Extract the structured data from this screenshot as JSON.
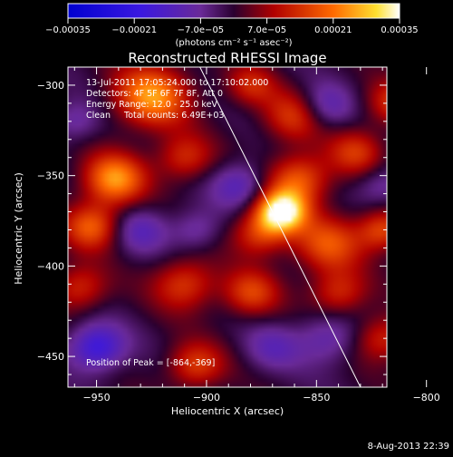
{
  "chart_data": {
    "type": "heatmap",
    "title": "Reconstructed RHESSI Image",
    "xlabel": "Heliocentric X (arcsec)",
    "ylabel": "Heliocentric Y (arcsec)",
    "xlim": [
      -963,
      -818
    ],
    "ylim": [
      -467,
      -290
    ],
    "x_ticks": [
      {
        "value": -950,
        "label": "−950"
      },
      {
        "value": -900,
        "label": "−900"
      },
      {
        "value": -850,
        "label": "−850"
      },
      {
        "value": -800,
        "label": "−800"
      }
    ],
    "y_ticks": [
      {
        "value": -300,
        "label": "−300"
      },
      {
        "value": -350,
        "label": "−350"
      },
      {
        "value": -400,
        "label": "−400"
      },
      {
        "value": -450,
        "label": "−450"
      }
    ],
    "colorbar": {
      "min": -0.00035,
      "max": 0.00035,
      "ticks": [
        {
          "value": -0.00035,
          "label": "−0.00035"
        },
        {
          "value": -0.00021,
          "label": "−0.00021"
        },
        {
          "value": -7e-05,
          "label": "−7.0e−05"
        },
        {
          "value": 7e-05,
          "label": "7.0e−05"
        },
        {
          "value": 0.00021,
          "label": "0.00021"
        },
        {
          "value": 0.00035,
          "label": "0.00035"
        }
      ],
      "units_label": "(photons cm⁻² s⁻¹ asec⁻²)"
    },
    "annotations": {
      "time_range": "13-Jul-2011 17:05:24.000 to 17:10:02.000",
      "detectors": "Detectors: 4F 5F 6F 7F 8F, Att 0",
      "energy_range": "Energy Range: 12.0 - 25.0 keV",
      "clean_counts": "Clean     Total counts: 6.49E+03",
      "peak_position": "Position of Peak = [-864,-369]"
    },
    "peak": {
      "x": -864,
      "y": -369
    },
    "limb_line": [
      [
        -903,
        -290
      ],
      [
        -830,
        -467
      ]
    ],
    "blobs": [
      {
        "x": -866,
        "y": -370,
        "w": 1.0,
        "s": 8
      },
      {
        "x": -858,
        "y": -352,
        "w": 0.55,
        "s": 10
      },
      {
        "x": -876,
        "y": -382,
        "w": 0.45,
        "s": 9
      },
      {
        "x": -845,
        "y": -388,
        "w": 0.5,
        "s": 11
      },
      {
        "x": -925,
        "y": -306,
        "w": 0.7,
        "s": 12
      },
      {
        "x": -942,
        "y": -352,
        "w": 0.7,
        "s": 10
      },
      {
        "x": -952,
        "y": -378,
        "w": 0.55,
        "s": 9
      },
      {
        "x": -910,
        "y": -340,
        "w": 0.4,
        "s": 9
      },
      {
        "x": -860,
        "y": -317,
        "w": 0.45,
        "s": 10
      },
      {
        "x": -910,
        "y": -410,
        "w": 0.45,
        "s": 10
      },
      {
        "x": -880,
        "y": -415,
        "w": 0.45,
        "s": 9
      },
      {
        "x": -820,
        "y": -380,
        "w": 0.5,
        "s": 8
      },
      {
        "x": -832,
        "y": -337,
        "w": 0.4,
        "s": 9
      },
      {
        "x": -840,
        "y": -415,
        "w": 0.4,
        "s": 9
      },
      {
        "x": -815,
        "y": -310,
        "w": 0.4,
        "s": 9
      },
      {
        "x": -905,
        "y": -455,
        "w": 0.45,
        "s": 9
      },
      {
        "x": -820,
        "y": -440,
        "w": 0.4,
        "s": 9
      },
      {
        "x": -958,
        "y": -412,
        "w": 0.4,
        "s": 9
      },
      {
        "x": -880,
        "y": -300,
        "w": 0.35,
        "s": 8
      },
      {
        "x": -950,
        "y": -445,
        "w": -0.55,
        "s": 9
      },
      {
        "x": -885,
        "y": -355,
        "w": -0.35,
        "s": 9
      },
      {
        "x": -847,
        "y": -312,
        "w": -0.35,
        "s": 9
      },
      {
        "x": -845,
        "y": -440,
        "w": -0.3,
        "s": 10
      },
      {
        "x": -930,
        "y": -380,
        "w": -0.3,
        "s": 9
      },
      {
        "x": -870,
        "y": -445,
        "w": -0.25,
        "s": 9
      },
      {
        "x": -905,
        "y": -380,
        "w": -0.25,
        "s": 8
      },
      {
        "x": -820,
        "y": -355,
        "w": -0.25,
        "s": 8
      },
      {
        "x": -960,
        "y": -320,
        "w": -0.25,
        "s": 8
      }
    ],
    "grid": false
  },
  "footer": {
    "timestamp": "8-Aug-2013 22:39"
  }
}
